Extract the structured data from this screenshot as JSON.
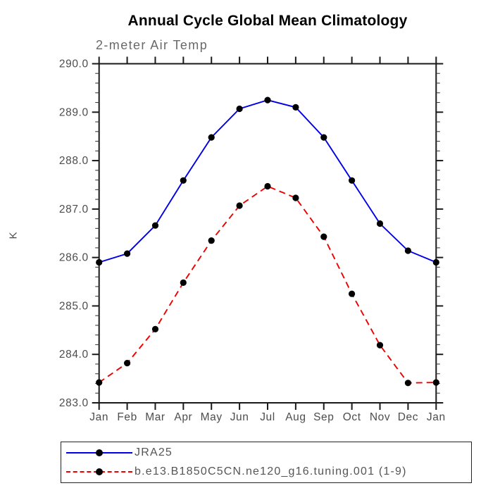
{
  "title": "Annual Cycle Global Mean Climatology",
  "subtitle": "2-meter Air Temp",
  "y_axis_title": "K",
  "colors": {
    "series1_blue": "#0000e6",
    "series2_red": "#ee0000",
    "marker_black": "#000000",
    "axis_black": "#1a1a1a",
    "tick_label_gray": "#4d4d4d",
    "subtitle_gray": "#696969",
    "legend_text_gray": "#555555"
  },
  "legend": {
    "items": [
      {
        "label": "JRA25",
        "line_style": "solid",
        "color": "#0000e6"
      },
      {
        "label": "b.e13.B1850C5CN.ne120_g16.tuning.001 (1-9)",
        "line_style": "dashed",
        "color": "#ee0000"
      }
    ]
  },
  "chart_data": {
    "type": "line",
    "title": "2-meter Air Temp",
    "main_title": "Annual Cycle Global Mean Climatology",
    "ylabel": "K",
    "xlabel": "",
    "categories": [
      "Jan",
      "Feb",
      "Mar",
      "Apr",
      "May",
      "Jun",
      "Jul",
      "Aug",
      "Sep",
      "Oct",
      "Nov",
      "Dec",
      "Jan"
    ],
    "ylim": [
      283.0,
      290.0
    ],
    "ytick_major_step": 1.0,
    "ytick_minor_step": 0.2,
    "yticklabels": [
      "283.0",
      "284.0",
      "285.0",
      "286.0",
      "287.0",
      "288.0",
      "289.0",
      "290.0"
    ],
    "grid": false,
    "legend_position": "bottom",
    "marker": "filled-circle",
    "series": [
      {
        "name": "JRA25",
        "color": "#0000e6",
        "style": "solid",
        "values": [
          285.9,
          286.08,
          286.66,
          287.59,
          288.48,
          289.07,
          289.25,
          289.1,
          288.48,
          287.59,
          286.7,
          286.14,
          285.9
        ]
      },
      {
        "name": "b.e13.B1850C5CN.ne120_g16.tuning.001 (1-9)",
        "color": "#ee0000",
        "style": "dashed",
        "values": [
          283.42,
          283.82,
          284.52,
          285.48,
          286.35,
          287.07,
          287.47,
          287.23,
          286.43,
          285.25,
          284.19,
          283.41,
          283.42
        ]
      }
    ]
  }
}
